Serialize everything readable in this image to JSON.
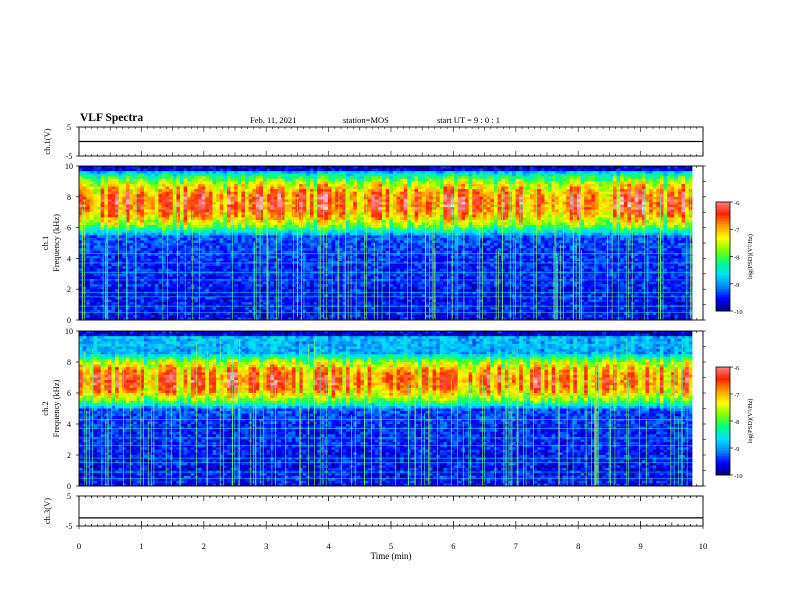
{
  "header": {
    "title": "VLF Spectra",
    "date": "Feb. 11, 2021",
    "station": "station=MOS",
    "start_ut": "start UT =  9 : 0 : 1"
  },
  "colors": {
    "ink": "#000000",
    "colormap": [
      "#00007a",
      "#0000ff",
      "#0088ff",
      "#00e0ff",
      "#00ff80",
      "#80ff00",
      "#ffff00",
      "#ffa000",
      "#ff2000",
      "#ff8080",
      "#ffffff"
    ]
  },
  "chart_data": [
    {
      "type": "line",
      "panel": "ch1",
      "ylabel": "ch.1(V)",
      "ylim": [
        -5,
        5
      ],
      "yticks": [
        5,
        -5
      ],
      "xlim": [
        0,
        10
      ],
      "series": [
        {
          "x": [
            0,
            10
          ],
          "y": [
            0,
            0
          ]
        }
      ]
    },
    {
      "type": "heatmap",
      "panel": "ch1",
      "ylabel": "ch.1\nFrequency (kHz)",
      "ylim": [
        0,
        10
      ],
      "yticks": [
        0,
        2,
        4,
        6,
        8,
        10
      ],
      "xlim": [
        0,
        10
      ],
      "data_x_range": [
        0,
        9.83
      ],
      "intense_band_khz": [
        6.0,
        9.0
      ],
      "colorbar": {
        "label": "log(PSD)(V²/Hz)",
        "range": [
          -10,
          -6
        ],
        "ticks": [
          -6,
          -7,
          -8,
          -9,
          -10
        ]
      }
    },
    {
      "type": "heatmap",
      "panel": "ch2",
      "ylabel": "ch.2\nFrequency (kHz)",
      "ylim": [
        0,
        10
      ],
      "yticks": [
        0,
        2,
        4,
        6,
        8,
        10
      ],
      "xlim": [
        0,
        10
      ],
      "data_x_range": [
        0,
        9.83
      ],
      "intense_band_khz": [
        5.5,
        8.0
      ],
      "colorbar": {
        "label": "log(PSD)(V²/Hz)",
        "range": [
          -10,
          -6
        ],
        "ticks": [
          -6,
          -7,
          -8,
          -9,
          -10
        ]
      }
    },
    {
      "type": "line",
      "panel": "ch3",
      "ylabel": "ch.3(V)",
      "ylim": [
        -5,
        5
      ],
      "yticks": [
        5,
        -5
      ],
      "xlim": [
        0,
        10
      ],
      "xlabel": "Time (min)",
      "xticks": [
        0,
        1,
        2,
        3,
        4,
        5,
        6,
        7,
        8,
        9,
        10
      ],
      "series": [
        {
          "x": [
            0,
            10
          ],
          "y": [
            -2.3,
            -2.3
          ]
        }
      ]
    }
  ]
}
